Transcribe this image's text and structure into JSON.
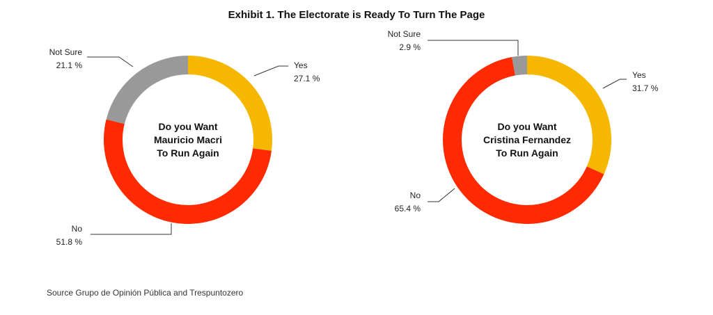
{
  "title": "Exhibit 1. The Electorate is Ready To Turn The Page",
  "source": "Source Grupo de Opinión Pública and Trespuntozero",
  "colors": {
    "yes": "#f5b700",
    "no": "#ff2a00",
    "not_sure": "#999999"
  },
  "chart_data": [
    {
      "type": "pie",
      "donut": true,
      "center_label": [
        "Do you Want",
        "Mauricio Macri",
        "To Run Again"
      ],
      "slices": [
        {
          "label": "Yes",
          "value": 27.1,
          "value_text": "27.1 %"
        },
        {
          "label": "No",
          "value": 51.8,
          "value_text": "51.8 %"
        },
        {
          "label": "Not Sure",
          "value": 21.1,
          "value_text": "21.1 %"
        }
      ]
    },
    {
      "type": "pie",
      "donut": true,
      "center_label": [
        "Do you Want",
        "Cristina Fernandez",
        "To Run Again"
      ],
      "slices": [
        {
          "label": "Yes",
          "value": 31.7,
          "value_text": "31.7 %"
        },
        {
          "label": "No",
          "value": 65.4,
          "value_text": "65.4 %"
        },
        {
          "label": "Not Sure",
          "value": 2.9,
          "value_text": "2.9 %"
        }
      ]
    }
  ]
}
